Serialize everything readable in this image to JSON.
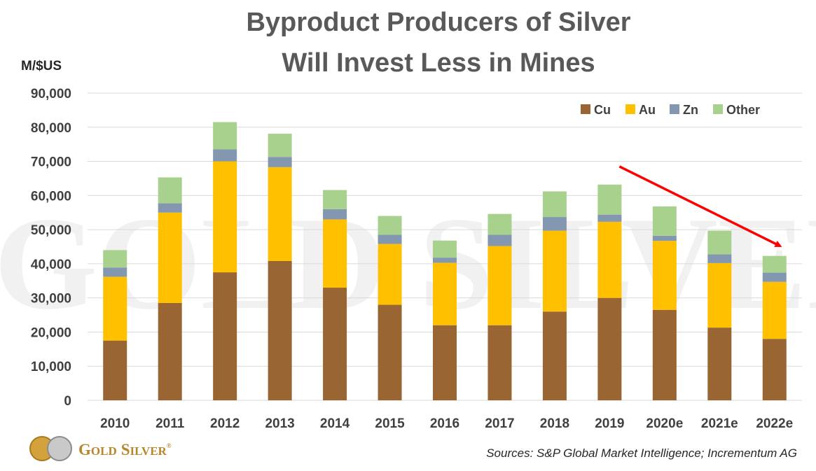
{
  "chart_data": {
    "type": "bar",
    "stacked": true,
    "title_lines": [
      "Byproduct Producers of Silver",
      "Will Invest Less in Mines"
    ],
    "unit_label": "M/$US",
    "categories": [
      "2010",
      "2011",
      "2012",
      "2013",
      "2014",
      "2015",
      "2016",
      "2017",
      "2018",
      "2019",
      "2020e",
      "2021e",
      "2022e"
    ],
    "series": [
      {
        "name": "Cu",
        "color": "#996633",
        "values": [
          17500,
          28500,
          37500,
          40800,
          33000,
          28000,
          22000,
          22000,
          26000,
          30000,
          26500,
          21300,
          18000
        ]
      },
      {
        "name": "Au",
        "color": "#ffc000",
        "values": [
          18700,
          26500,
          32500,
          27500,
          20000,
          17800,
          18300,
          23200,
          23700,
          22300,
          20200,
          18900,
          16700
        ]
      },
      {
        "name": "Zn",
        "color": "#8497b0",
        "values": [
          2700,
          2700,
          3500,
          3000,
          3000,
          2700,
          1500,
          3300,
          4000,
          2100,
          1500,
          2600,
          2700
        ]
      },
      {
        "name": "Other",
        "color": "#a9d18e",
        "values": [
          5100,
          7600,
          8000,
          6800,
          5600,
          5500,
          5000,
          6100,
          7500,
          8800,
          8600,
          6900,
          4900
        ]
      }
    ],
    "ylim": [
      0,
      90000
    ],
    "yticks": [
      0,
      10000,
      20000,
      30000,
      40000,
      50000,
      60000,
      70000,
      80000,
      90000
    ],
    "ytick_labels": [
      "0",
      "10,000",
      "20,000",
      "30,000",
      "40,000",
      "50,000",
      "60,000",
      "70,000",
      "80,000",
      "90,000"
    ],
    "grid": true,
    "legend_position": "top-right",
    "trend_arrow": {
      "from": {
        "x": "2019",
        "y": 68500
      },
      "to": {
        "x": "2022e",
        "y": 45200
      },
      "color": "#ff0000"
    },
    "source": "Sources: S&P Global Market Intelligence; Incrementum AG"
  },
  "branding": {
    "logo_text_parts": [
      "G",
      "OLD",
      "S",
      "ILVER"
    ],
    "logo_mark": "®",
    "watermark": "GOLD SILVER"
  }
}
